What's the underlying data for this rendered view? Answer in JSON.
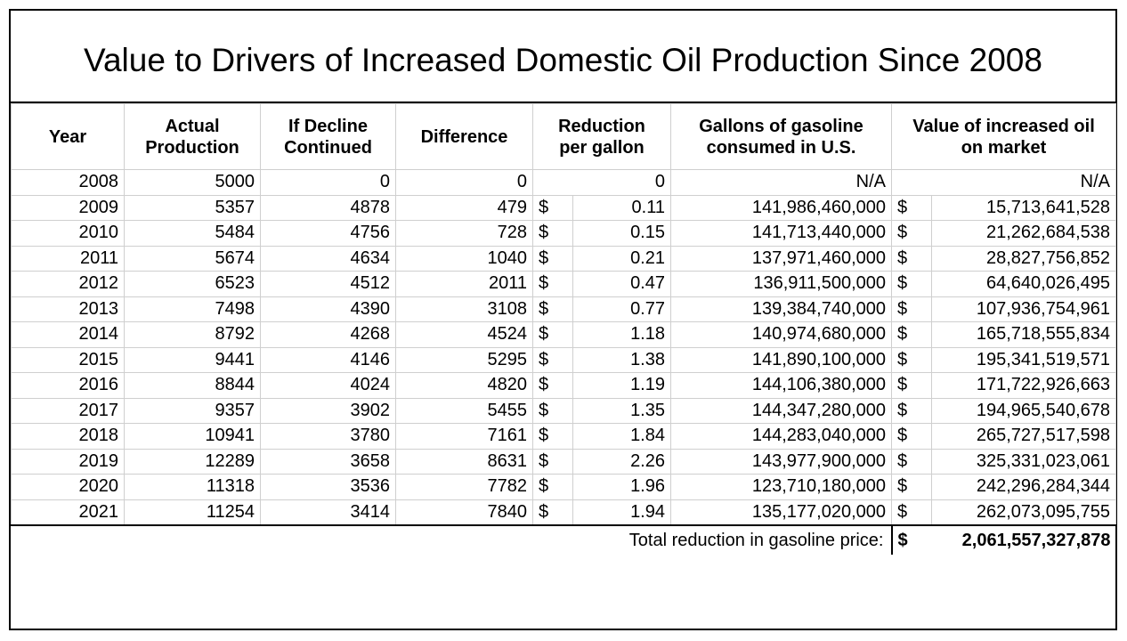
{
  "title": "Value to Drivers of Increased Domestic Oil Production Since 2008",
  "headers": {
    "year": "Year",
    "actual_1": "Actual",
    "actual_2": "Production",
    "decline_1": "If Decline",
    "decline_2": "Continued",
    "difference": "Difference",
    "reduction_1": "Reduction",
    "reduction_2": "per gallon",
    "gallons_1": "Gallons of gasoline",
    "gallons_2": "consumed in U.S.",
    "value_1": "Value of increased oil",
    "value_2": "on market"
  },
  "currency_symbol": "$",
  "rows": [
    {
      "year": "2008",
      "actual": "5000",
      "decline": "0",
      "difference": "0",
      "reduction_sym": "",
      "reduction": "0",
      "gallons": "N/A",
      "value_sym": "",
      "value": "N/A"
    },
    {
      "year": "2009",
      "actual": "5357",
      "decline": "4878",
      "difference": "479",
      "reduction_sym": "$",
      "reduction": "0.11",
      "gallons": "141,986,460,000",
      "value_sym": "$",
      "value": "15,713,641,528"
    },
    {
      "year": "2010",
      "actual": "5484",
      "decline": "4756",
      "difference": "728",
      "reduction_sym": "$",
      "reduction": "0.15",
      "gallons": "141,713,440,000",
      "value_sym": "$",
      "value": "21,262,684,538"
    },
    {
      "year": "2011",
      "actual": "5674",
      "decline": "4634",
      "difference": "1040",
      "reduction_sym": "$",
      "reduction": "0.21",
      "gallons": "137,971,460,000",
      "value_sym": "$",
      "value": "28,827,756,852"
    },
    {
      "year": "2012",
      "actual": "6523",
      "decline": "4512",
      "difference": "2011",
      "reduction_sym": "$",
      "reduction": "0.47",
      "gallons": "136,911,500,000",
      "value_sym": "$",
      "value": "64,640,026,495"
    },
    {
      "year": "2013",
      "actual": "7498",
      "decline": "4390",
      "difference": "3108",
      "reduction_sym": "$",
      "reduction": "0.77",
      "gallons": "139,384,740,000",
      "value_sym": "$",
      "value": "107,936,754,961"
    },
    {
      "year": "2014",
      "actual": "8792",
      "decline": "4268",
      "difference": "4524",
      "reduction_sym": "$",
      "reduction": "1.18",
      "gallons": "140,974,680,000",
      "value_sym": "$",
      "value": "165,718,555,834"
    },
    {
      "year": "2015",
      "actual": "9441",
      "decline": "4146",
      "difference": "5295",
      "reduction_sym": "$",
      "reduction": "1.38",
      "gallons": "141,890,100,000",
      "value_sym": "$",
      "value": "195,341,519,571"
    },
    {
      "year": "2016",
      "actual": "8844",
      "decline": "4024",
      "difference": "4820",
      "reduction_sym": "$",
      "reduction": "1.19",
      "gallons": "144,106,380,000",
      "value_sym": "$",
      "value": "171,722,926,663"
    },
    {
      "year": "2017",
      "actual": "9357",
      "decline": "3902",
      "difference": "5455",
      "reduction_sym": "$",
      "reduction": "1.35",
      "gallons": "144,347,280,000",
      "value_sym": "$",
      "value": "194,965,540,678"
    },
    {
      "year": "2018",
      "actual": "10941",
      "decline": "3780",
      "difference": "7161",
      "reduction_sym": "$",
      "reduction": "1.84",
      "gallons": "144,283,040,000",
      "value_sym": "$",
      "value": "265,727,517,598"
    },
    {
      "year": "2019",
      "actual": "12289",
      "decline": "3658",
      "difference": "8631",
      "reduction_sym": "$",
      "reduction": "2.26",
      "gallons": "143,977,900,000",
      "value_sym": "$",
      "value": "325,331,023,061"
    },
    {
      "year": "2020",
      "actual": "11318",
      "decline": "3536",
      "difference": "7782",
      "reduction_sym": "$",
      "reduction": "1.96",
      "gallons": "123,710,180,000",
      "value_sym": "$",
      "value": "242,296,284,344"
    },
    {
      "year": "2021",
      "actual": "11254",
      "decline": "3414",
      "difference": "7840",
      "reduction_sym": "$",
      "reduction": "1.94",
      "gallons": "135,177,020,000",
      "value_sym": "$",
      "value": "262,073,095,755"
    }
  ],
  "total": {
    "label": "Total reduction in gasoline price:",
    "symbol": "$",
    "value": "2,061,557,327,878"
  }
}
